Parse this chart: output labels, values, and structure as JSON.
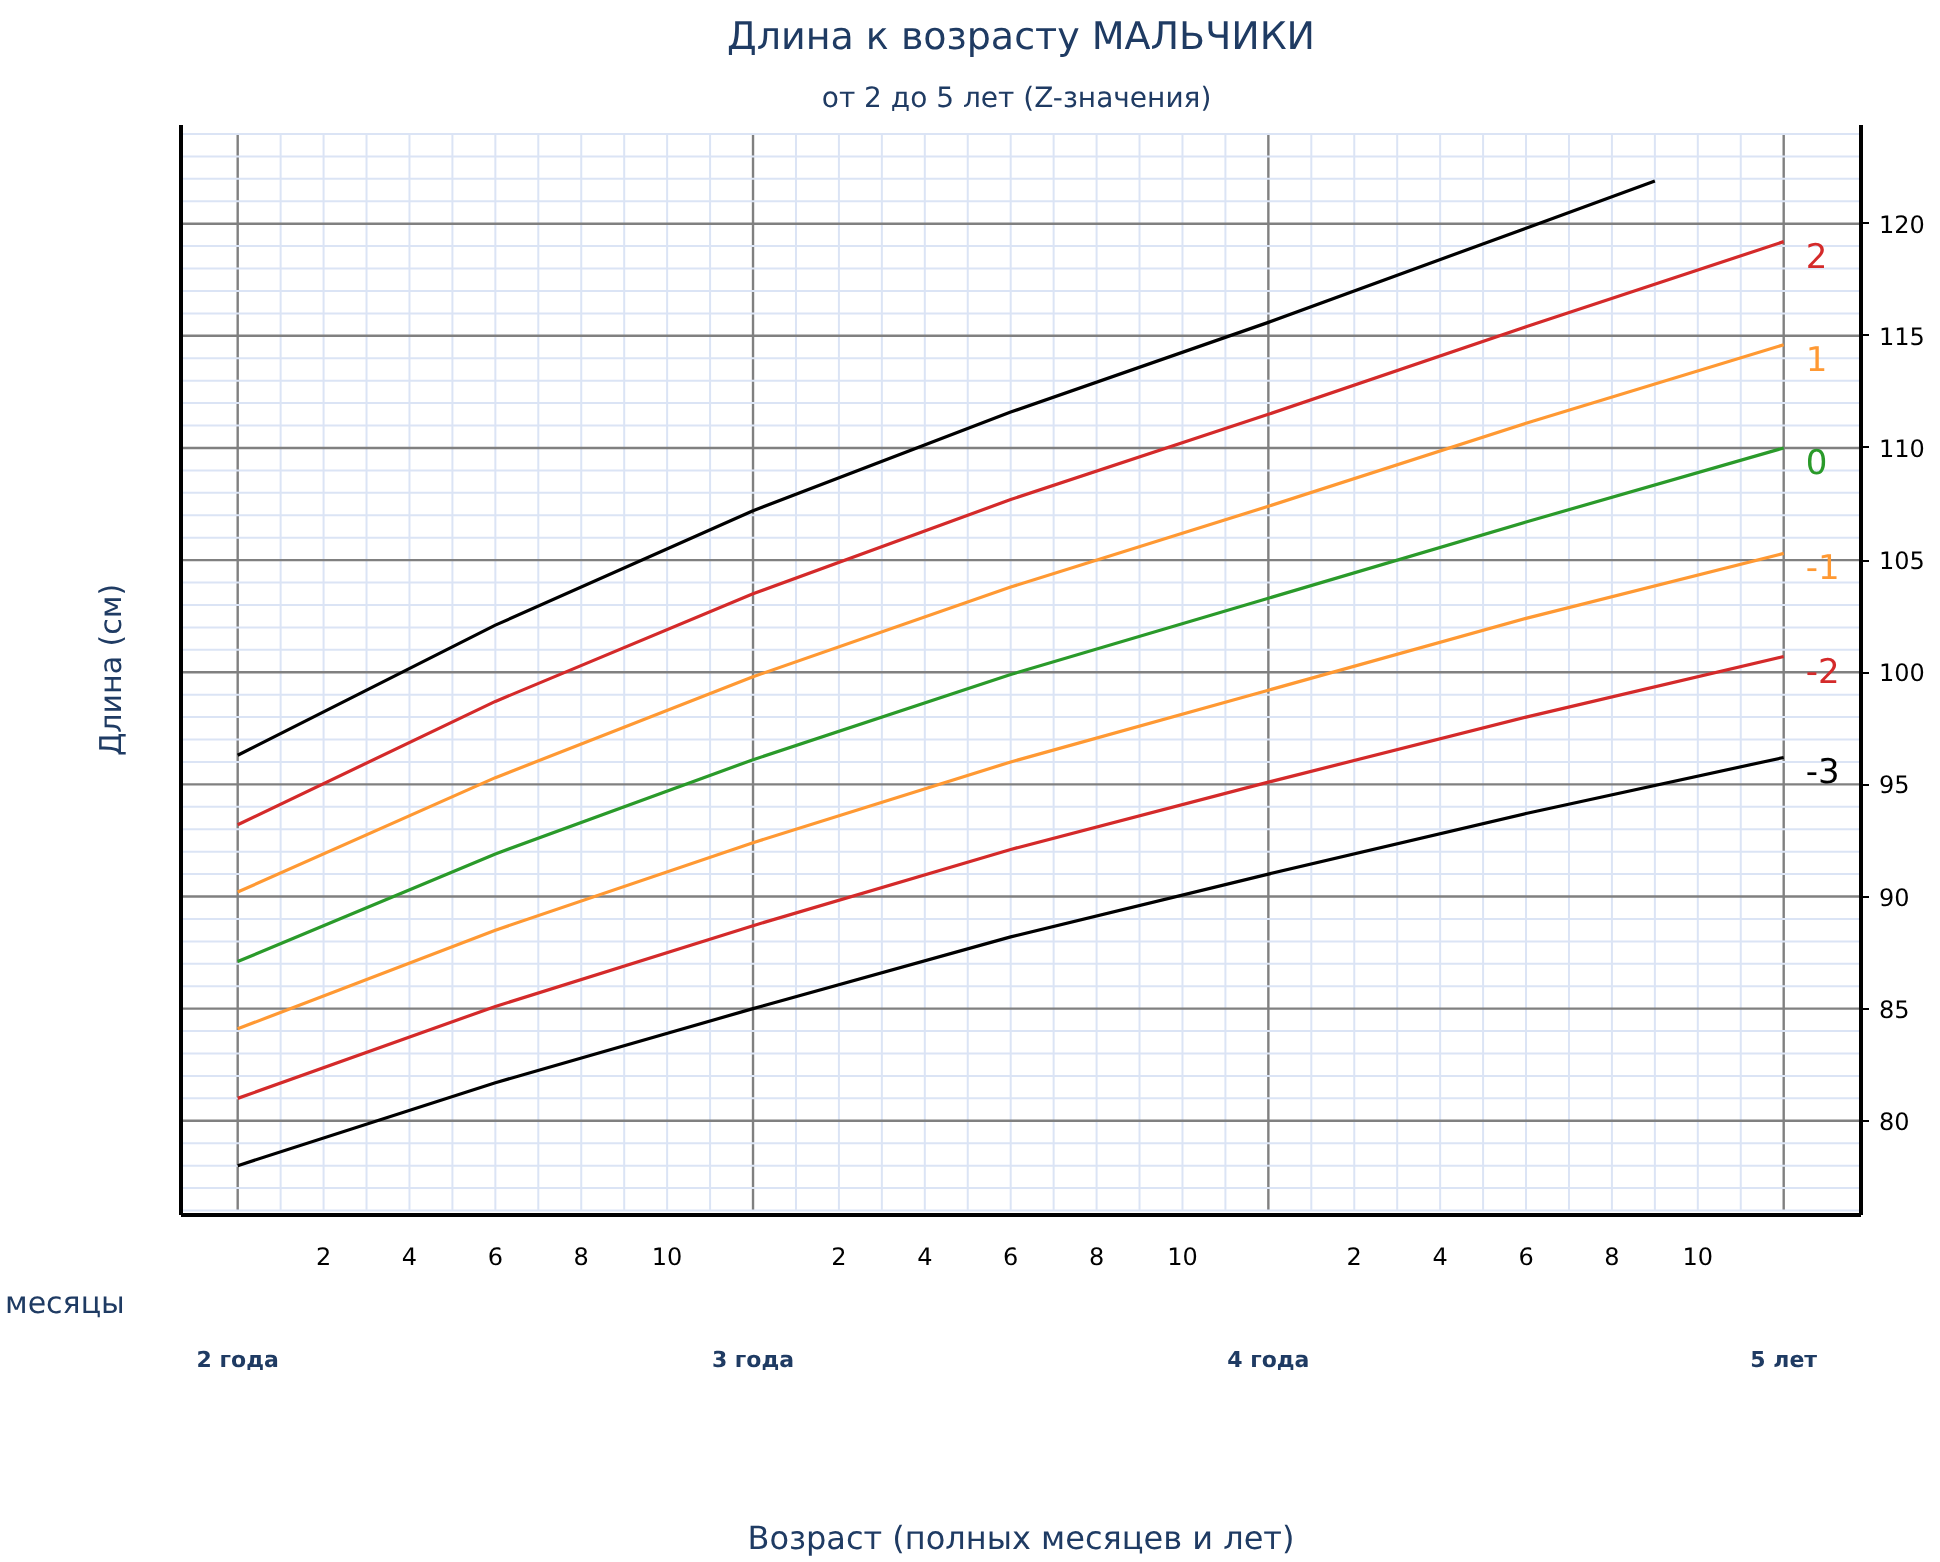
{
  "chart_data": {
    "type": "line",
    "title": "Длина к возрасту МАЛЬЧИКИ",
    "subtitle": "от 2 до  5 лет (Z-значения)",
    "xlabel": "Возраст (полных месяцев и лет)",
    "ylabel": "Длина (см)",
    "annotations": [
      "месяцы",
      "2",
      "4",
      "6",
      "8",
      "10",
      "2",
      "4",
      "6",
      "8",
      "10",
      "2",
      "4",
      "6",
      "8",
      "10"
    ],
    "xlim": [
      1.89,
      5.15
    ],
    "ylim": [
      75.8,
      124.4
    ],
    "xticks": [
      {
        "value": 2,
        "label": "2 года"
      },
      {
        "value": 3,
        "label": "3 года"
      },
      {
        "value": 4,
        "label": "4 года"
      },
      {
        "value": 5,
        "label": "5 лет"
      }
    ],
    "yticks": [
      80,
      85,
      90,
      95,
      100,
      105,
      110,
      115,
      120
    ],
    "grid": true,
    "line_style": "solid",
    "series": [
      {
        "color": "#000000",
        "x": [
          2,
          2.5,
          3,
          3.5,
          4,
          4.5,
          4.75
        ],
        "values": [
          96.3,
          102.1,
          107.2,
          111.6,
          115.6,
          119.8,
          121.9
        ]
      },
      {
        "name": "2",
        "color": "#d42a2a",
        "x": [
          2,
          2.5,
          3,
          3.5,
          4,
          4.5,
          5
        ],
        "values": [
          93.2,
          98.7,
          103.5,
          107.7,
          111.5,
          115.4,
          119.2
        ]
      },
      {
        "name": "1",
        "color": "#ff9933",
        "x": [
          2,
          2.5,
          3,
          3.5,
          4,
          4.5,
          5
        ],
        "values": [
          90.2,
          95.3,
          99.8,
          103.8,
          107.4,
          111.1,
          114.6
        ]
      },
      {
        "name": "0",
        "color": "#2a9a2a",
        "x": [
          2,
          2.5,
          3,
          3.5,
          4,
          4.5,
          5
        ],
        "values": [
          87.1,
          91.9,
          96.1,
          99.9,
          103.3,
          106.7,
          110.0
        ]
      },
      {
        "name": "-1",
        "color": "#ff9933",
        "x": [
          2,
          2.5,
          3,
          3.5,
          4,
          4.5,
          5
        ],
        "values": [
          84.1,
          88.5,
          92.4,
          96.0,
          99.2,
          102.4,
          105.3
        ]
      },
      {
        "name": "-2",
        "color": "#d42a2a",
        "x": [
          2,
          2.5,
          3,
          3.5,
          4,
          4.5,
          5
        ],
        "values": [
          81.0,
          85.1,
          88.7,
          92.1,
          95.1,
          98.0,
          100.7
        ]
      },
      {
        "name": "-3",
        "color": "#000000",
        "x": [
          2,
          2.5,
          3,
          3.5,
          4,
          4.5,
          5
        ],
        "values": [
          78.0,
          81.7,
          85.0,
          88.2,
          91.0,
          93.7,
          96.2
        ]
      }
    ]
  }
}
